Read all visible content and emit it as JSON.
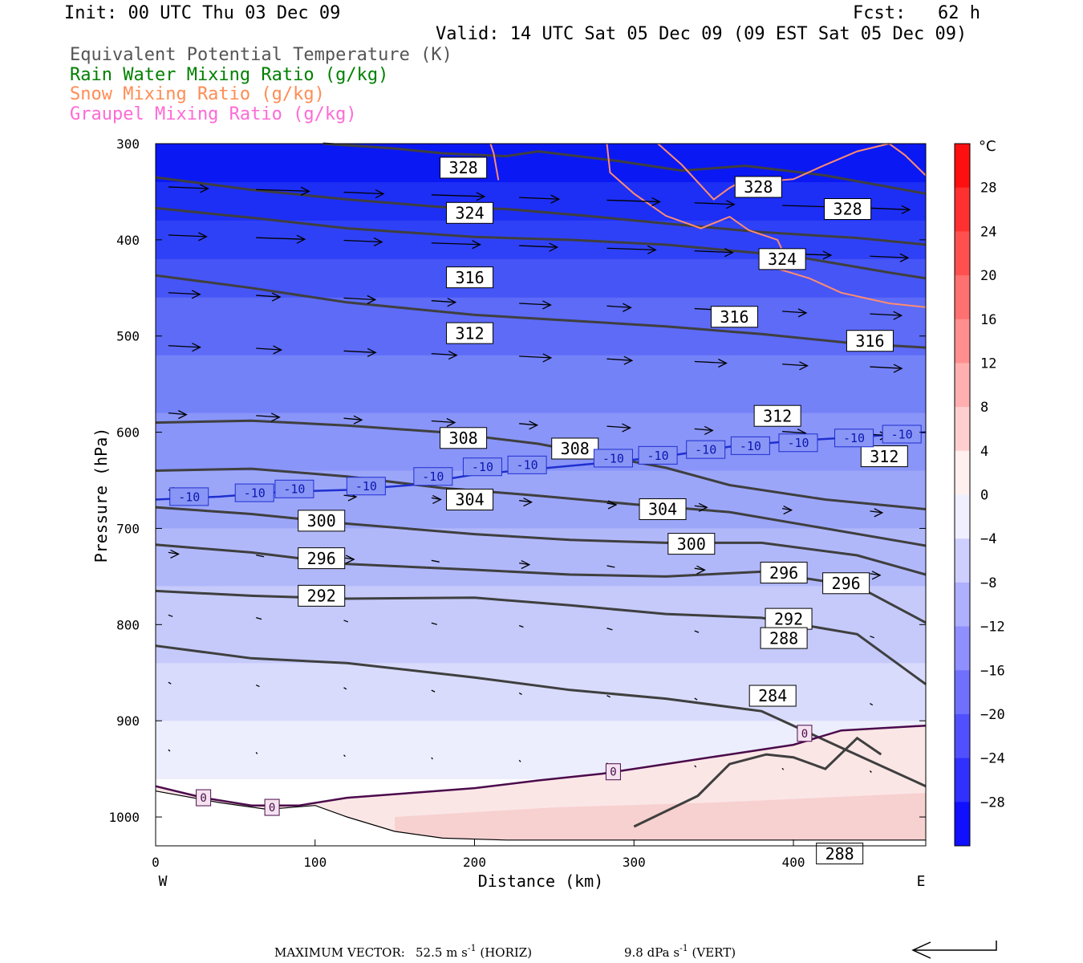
{
  "header": {
    "init": "Init: 00 UTC Thu 03 Dec 09",
    "fcst": "Fcst:   62 h",
    "valid": "Valid: 14 UTC Sat 05 Dec 09 (09 EST Sat 05 Dec 09)"
  },
  "legend": [
    {
      "label": "Equivalent Potential Temperature (K)",
      "color": "#555555"
    },
    {
      "label": "Rain Water Mixing Ratio (g/kg)",
      "color": "#008000"
    },
    {
      "label": "Snow Mixing Ratio (g/kg)",
      "color": "#ff8c55"
    },
    {
      "label": "Graupel Mixing Ratio (g/kg)",
      "color": "#ff6ad5"
    }
  ],
  "footer": {
    "max_label": "MAXIMUM VECTOR:",
    "horiz_value": "52.5 m s",
    "horiz_unit": " (HORIZ)",
    "vert_value": "9.8 dPa s",
    "vert_unit": " (VERT)",
    "exponent": "-1"
  },
  "chart_data": {
    "type": "cross-section",
    "xlabel": "Distance (km)",
    "ylabel": "Pressure (hPa)",
    "xlim": [
      0,
      483
    ],
    "ylim": [
      1030,
      300
    ],
    "x_ticks": [
      0,
      100,
      200,
      300,
      400
    ],
    "y_ticks": [
      300,
      400,
      500,
      600,
      700,
      800,
      900,
      1000
    ],
    "x_end_labels": {
      "left": "W",
      "right": "E"
    },
    "colorbar": {
      "unit": "°C",
      "ticks": [
        28,
        24,
        20,
        16,
        12,
        8,
        4,
        0,
        -4,
        -8,
        -12,
        -16,
        -20,
        -24,
        -28
      ],
      "range": [
        -32,
        32
      ]
    },
    "theta_e_contours": [
      {
        "value": 328,
        "points": [
          [
            105,
            300
          ],
          [
            150,
            305
          ],
          [
            180,
            310
          ],
          [
            220,
            313
          ],
          [
            240,
            308
          ],
          [
            290,
            318
          ],
          [
            330,
            328
          ],
          [
            370,
            323
          ],
          [
            420,
            333
          ],
          [
            483,
            352
          ]
        ],
        "labels": [
          [
            193,
            325
          ],
          [
            378,
            345
          ],
          [
            434,
            368
          ]
        ]
      },
      {
        "value": 324,
        "points": [
          [
            0,
            367
          ],
          [
            60,
            377
          ],
          [
            120,
            388
          ],
          [
            200,
            397
          ],
          [
            260,
            400
          ],
          [
            320,
            405
          ],
          [
            400,
            417
          ],
          [
            460,
            434
          ],
          [
            483,
            440
          ]
        ],
        "labels": [
          [
            197,
            372
          ],
          [
            393,
            420
          ]
        ]
      },
      {
        "value": 316,
        "points": [
          [
            0,
            437
          ],
          [
            60,
            450
          ],
          [
            120,
            465
          ],
          [
            200,
            478
          ],
          [
            260,
            484
          ],
          [
            320,
            490
          ],
          [
            380,
            498
          ],
          [
            440,
            508
          ],
          [
            483,
            512
          ]
        ],
        "labels": [
          [
            197,
            439
          ],
          [
            363,
            480
          ],
          [
            448,
            505
          ]
        ]
      },
      {
        "value": 312,
        "points": [
          [
            0,
            335
          ],
          [
            60,
            348
          ],
          [
            120,
            358
          ],
          [
            180,
            366
          ],
          [
            220,
            368
          ],
          [
            270,
            375
          ],
          [
            320,
            383
          ],
          [
            380,
            392
          ],
          [
            440,
            398
          ],
          [
            483,
            405
          ]
        ],
        "labels": [
          [
            197,
            497
          ],
          [
            390,
            583
          ],
          [
            457,
            625
          ]
        ]
      },
      {
        "value": 308,
        "points": [
          [
            0,
            590
          ],
          [
            60,
            588
          ],
          [
            120,
            593
          ],
          [
            180,
            600
          ],
          [
            240,
            612
          ],
          [
            320,
            637
          ],
          [
            360,
            655
          ],
          [
            420,
            670
          ],
          [
            483,
            680
          ]
        ],
        "labels": [
          [
            193,
            606
          ],
          [
            263,
            617
          ]
        ]
      },
      {
        "value": 304,
        "points": [
          [
            0,
            640
          ],
          [
            60,
            638
          ],
          [
            120,
            646
          ],
          [
            180,
            658
          ],
          [
            240,
            666
          ],
          [
            300,
            675
          ],
          [
            360,
            683
          ],
          [
            420,
            700
          ],
          [
            483,
            718
          ]
        ],
        "labels": [
          [
            197,
            670
          ],
          [
            318,
            680
          ]
        ]
      },
      {
        "value": 300,
        "points": [
          [
            0,
            678
          ],
          [
            60,
            685
          ],
          [
            120,
            695
          ],
          [
            200,
            706
          ],
          [
            260,
            712
          ],
          [
            320,
            715
          ],
          [
            380,
            715
          ],
          [
            440,
            728
          ],
          [
            483,
            748
          ]
        ],
        "labels": [
          [
            104,
            692
          ],
          [
            336,
            716
          ]
        ]
      },
      {
        "value": 296,
        "points": [
          [
            0,
            717
          ],
          [
            60,
            725
          ],
          [
            120,
            737
          ],
          [
            200,
            743
          ],
          [
            260,
            748
          ],
          [
            320,
            750
          ],
          [
            380,
            745
          ],
          [
            440,
            760
          ],
          [
            483,
            798
          ]
        ],
        "labels": [
          [
            104,
            731
          ],
          [
            394,
            746
          ],
          [
            433,
            757
          ]
        ]
      },
      {
        "value": 292,
        "points": [
          [
            0,
            765
          ],
          [
            60,
            770
          ],
          [
            120,
            773
          ],
          [
            200,
            772
          ],
          [
            260,
            780
          ],
          [
            320,
            789
          ],
          [
            380,
            793
          ],
          [
            440,
            810
          ],
          [
            483,
            862
          ]
        ],
        "labels": [
          [
            104,
            770
          ],
          [
            397,
            794
          ]
        ]
      },
      {
        "value": 288,
        "points": [
          [
            0,
            822
          ],
          [
            60,
            835
          ],
          [
            120,
            840
          ],
          [
            200,
            855
          ],
          [
            260,
            868
          ],
          [
            320,
            877
          ],
          [
            380,
            890
          ],
          [
            430,
            928
          ],
          [
            483,
            968
          ]
        ],
        "labels": [
          [
            394,
            814
          ],
          [
            429,
            1038
          ]
        ]
      },
      {
        "value": 284,
        "points": [
          [
            300,
            1010
          ],
          [
            340,
            978
          ],
          [
            360,
            945
          ],
          [
            383,
            935
          ],
          [
            400,
            938
          ],
          [
            420,
            950
          ],
          [
            440,
            918
          ],
          [
            455,
            935
          ]
        ],
        "labels": [
          [
            387,
            874
          ]
        ]
      }
    ],
    "isotherm_minus10": {
      "value": -10,
      "points": [
        [
          0,
          670
        ],
        [
          40,
          667
        ],
        [
          80,
          662
        ],
        [
          120,
          660
        ],
        [
          160,
          655
        ],
        [
          200,
          644
        ],
        [
          240,
          638
        ],
        [
          280,
          632
        ],
        [
          320,
          625
        ],
        [
          360,
          615
        ],
        [
          400,
          609
        ],
        [
          440,
          605
        ],
        [
          483,
          600
        ]
      ],
      "labels": [
        [
          21,
          667
        ],
        [
          62,
          663
        ],
        [
          87,
          659
        ],
        [
          132,
          656
        ],
        [
          174,
          646
        ],
        [
          205,
          636
        ],
        [
          233,
          634
        ],
        [
          287,
          627
        ],
        [
          315,
          624
        ],
        [
          345,
          618
        ],
        [
          373,
          614
        ],
        [
          403,
          611
        ],
        [
          438,
          606
        ],
        [
          468,
          602
        ]
      ]
    },
    "isotherm_zero": {
      "value": 0,
      "points": [
        [
          0,
          968
        ],
        [
          30,
          980
        ],
        [
          60,
          988
        ],
        [
          90,
          988
        ],
        [
          120,
          980
        ],
        [
          160,
          975
        ],
        [
          200,
          970
        ],
        [
          240,
          962
        ],
        [
          280,
          955
        ],
        [
          320,
          945
        ],
        [
          360,
          935
        ],
        [
          400,
          925
        ],
        [
          430,
          910
        ],
        [
          483,
          905
        ]
      ],
      "labels": [
        [
          30,
          980
        ],
        [
          73,
          990
        ],
        [
          287,
          953
        ],
        [
          407,
          913
        ]
      ]
    },
    "snow_contours": [
      [
        [
          210,
          300
        ],
        [
          212,
          310
        ],
        [
          215,
          338
        ]
      ],
      [
        [
          283,
          300
        ],
        [
          285,
          330
        ],
        [
          300,
          352
        ],
        [
          320,
          375
        ],
        [
          342,
          388
        ],
        [
          360,
          376
        ],
        [
          372,
          390
        ],
        [
          390,
          400
        ],
        [
          395,
          418
        ],
        [
          380,
          425
        ],
        [
          410,
          440
        ],
        [
          430,
          455
        ],
        [
          460,
          466
        ],
        [
          483,
          470
        ]
      ],
      [
        [
          315,
          300
        ],
        [
          330,
          322
        ],
        [
          350,
          358
        ],
        [
          360,
          346
        ],
        [
          370,
          337
        ],
        [
          385,
          339
        ],
        [
          400,
          337
        ],
        [
          420,
          322
        ],
        [
          440,
          308
        ],
        [
          460,
          300
        ],
        [
          470,
          312
        ],
        [
          483,
          333
        ]
      ]
    ],
    "surface_terrain": [
      [
        0,
        973
      ],
      [
        40,
        985
      ],
      [
        70,
        992
      ],
      [
        100,
        988
      ],
      [
        120,
        1000
      ],
      [
        150,
        1015
      ],
      [
        180,
        1022
      ],
      [
        220,
        1024
      ],
      [
        280,
        1024
      ],
      [
        340,
        1024
      ],
      [
        400,
        1024
      ],
      [
        483,
        1024
      ]
    ],
    "colorbar_min_color": "#0000ff",
    "colorbar_max_color": "#ff0000"
  }
}
